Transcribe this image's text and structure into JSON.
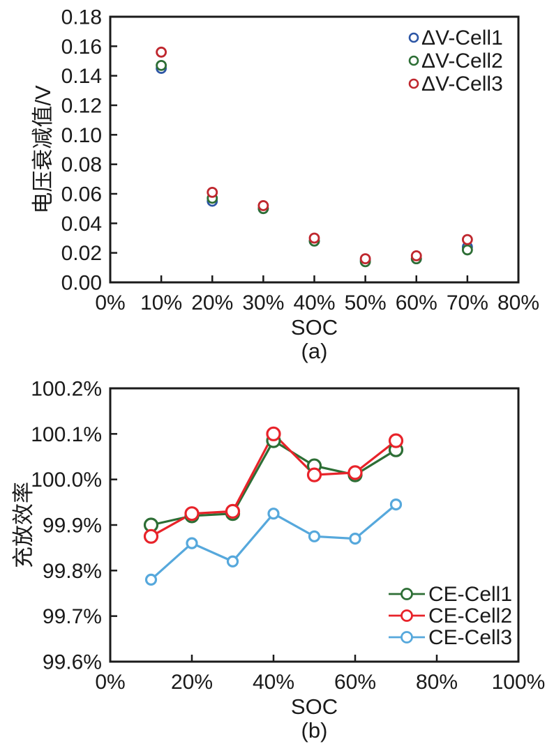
{
  "page": {
    "background": "#ffffff",
    "axis_color": "#1a1a1a"
  },
  "chart_data": [
    {
      "id": "a",
      "type": "scatter",
      "caption": "(a)",
      "xlabel": "SOC",
      "ylabel": "电压衰减值/V",
      "grid": false,
      "legend_position": "top-right-inside",
      "x": [
        10,
        20,
        30,
        40,
        50,
        60,
        70
      ],
      "xlim": [
        0,
        80
      ],
      "x_tick_labels": [
        "0%",
        "10%",
        "20%",
        "30%",
        "40%",
        "50%",
        "60%",
        "70%",
        "80%"
      ],
      "ylim": [
        0,
        0.18
      ],
      "y_tick_labels": [
        "0.00",
        "0.02",
        "0.04",
        "0.06",
        "0.08",
        "0.10",
        "0.12",
        "0.14",
        "0.16",
        "0.18"
      ],
      "marker": "open-circle",
      "series": [
        {
          "name": "ΔV-Cell1",
          "color": "#2d56a5",
          "values": [
            0.145,
            0.055,
            0.05,
            0.028,
            0.015,
            0.016,
            0.024
          ]
        },
        {
          "name": "ΔV-Cell2",
          "color": "#2d6e35",
          "values": [
            0.147,
            0.057,
            0.05,
            0.028,
            0.014,
            0.016,
            0.022
          ]
        },
        {
          "name": "ΔV-Cell3",
          "color": "#bf272e",
          "values": [
            0.156,
            0.061,
            0.052,
            0.03,
            0.016,
            0.018,
            0.029
          ]
        }
      ]
    },
    {
      "id": "b",
      "type": "line",
      "caption": "(b)",
      "xlabel": "SOC",
      "ylabel": "充放效率",
      "grid": false,
      "legend_position": "bottom-right-inside",
      "x": [
        10,
        20,
        30,
        40,
        50,
        60,
        70
      ],
      "xlim": [
        0,
        100
      ],
      "x_tick_labels": [
        "0%",
        "20%",
        "40%",
        "60%",
        "80%",
        "100%"
      ],
      "ylim": [
        99.6,
        100.2
      ],
      "y_tick_labels": [
        "99.6%",
        "99.7%",
        "99.8%",
        "99.9%",
        "100.0%",
        "100.1%",
        "100.2%"
      ],
      "marker": "open-circle",
      "series": [
        {
          "name": "CE-Cell1",
          "color": "#2d6e35",
          "values": [
            99.9,
            99.92,
            99.925,
            100.085,
            100.03,
            100.01,
            100.065
          ]
        },
        {
          "name": "CE-Cell2",
          "color": "#e8232a",
          "values": [
            99.875,
            99.925,
            99.93,
            100.1,
            100.01,
            100.015,
            100.085
          ]
        },
        {
          "name": "CE-Cell3",
          "color": "#56a8dc",
          "values": [
            99.78,
            99.86,
            99.82,
            99.925,
            99.875,
            99.87,
            99.945
          ]
        }
      ]
    }
  ]
}
